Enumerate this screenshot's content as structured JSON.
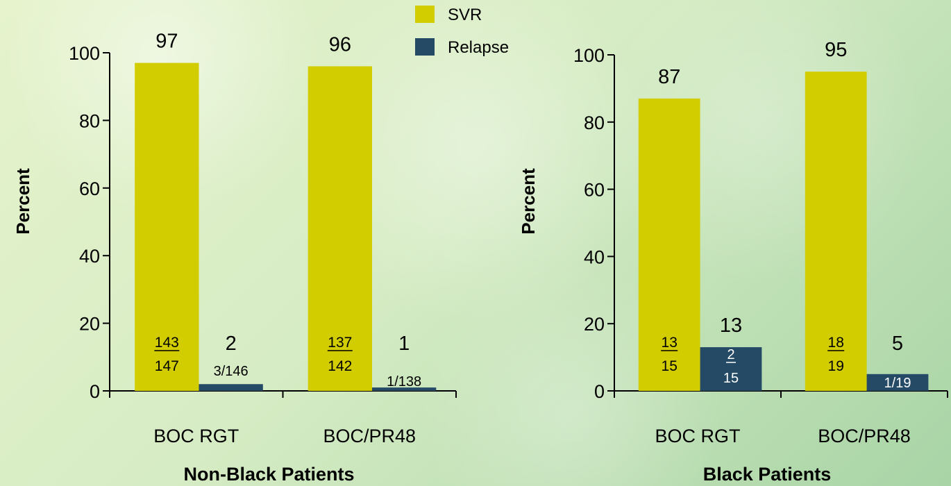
{
  "legend": [
    {
      "label": "SVR",
      "color": "#d2cd00"
    },
    {
      "label": "Relapse",
      "color": "#244a66"
    }
  ],
  "chart_data": [
    {
      "type": "bar",
      "title": "Non-Black Patients",
      "ylabel": "Percent",
      "ylim": [
        0,
        100
      ],
      "yticks": [
        0,
        20,
        40,
        60,
        80,
        100
      ],
      "categories": [
        "BOC RGT",
        "BOC/PR48"
      ],
      "series": [
        {
          "name": "SVR",
          "values": [
            97,
            96
          ],
          "numerators": [
            "143",
            "137"
          ],
          "denominators": [
            "147",
            "142"
          ]
        },
        {
          "name": "Relapse",
          "values": [
            2,
            1
          ],
          "numerators": [
            "3",
            "1"
          ],
          "denominators": [
            "146",
            "138"
          ]
        }
      ]
    },
    {
      "type": "bar",
      "title": "Black Patients",
      "ylabel": "Percent",
      "ylim": [
        0,
        100
      ],
      "yticks": [
        0,
        20,
        40,
        60,
        80,
        100
      ],
      "categories": [
        "BOC RGT",
        "BOC/PR48"
      ],
      "series": [
        {
          "name": "SVR",
          "values": [
            87,
            95
          ],
          "numerators": [
            "13",
            "18"
          ],
          "denominators": [
            "15",
            "19"
          ]
        },
        {
          "name": "Relapse",
          "values": [
            13,
            5
          ],
          "numerators": [
            "2",
            "1"
          ],
          "denominators": [
            "15",
            "19"
          ]
        }
      ]
    }
  ]
}
